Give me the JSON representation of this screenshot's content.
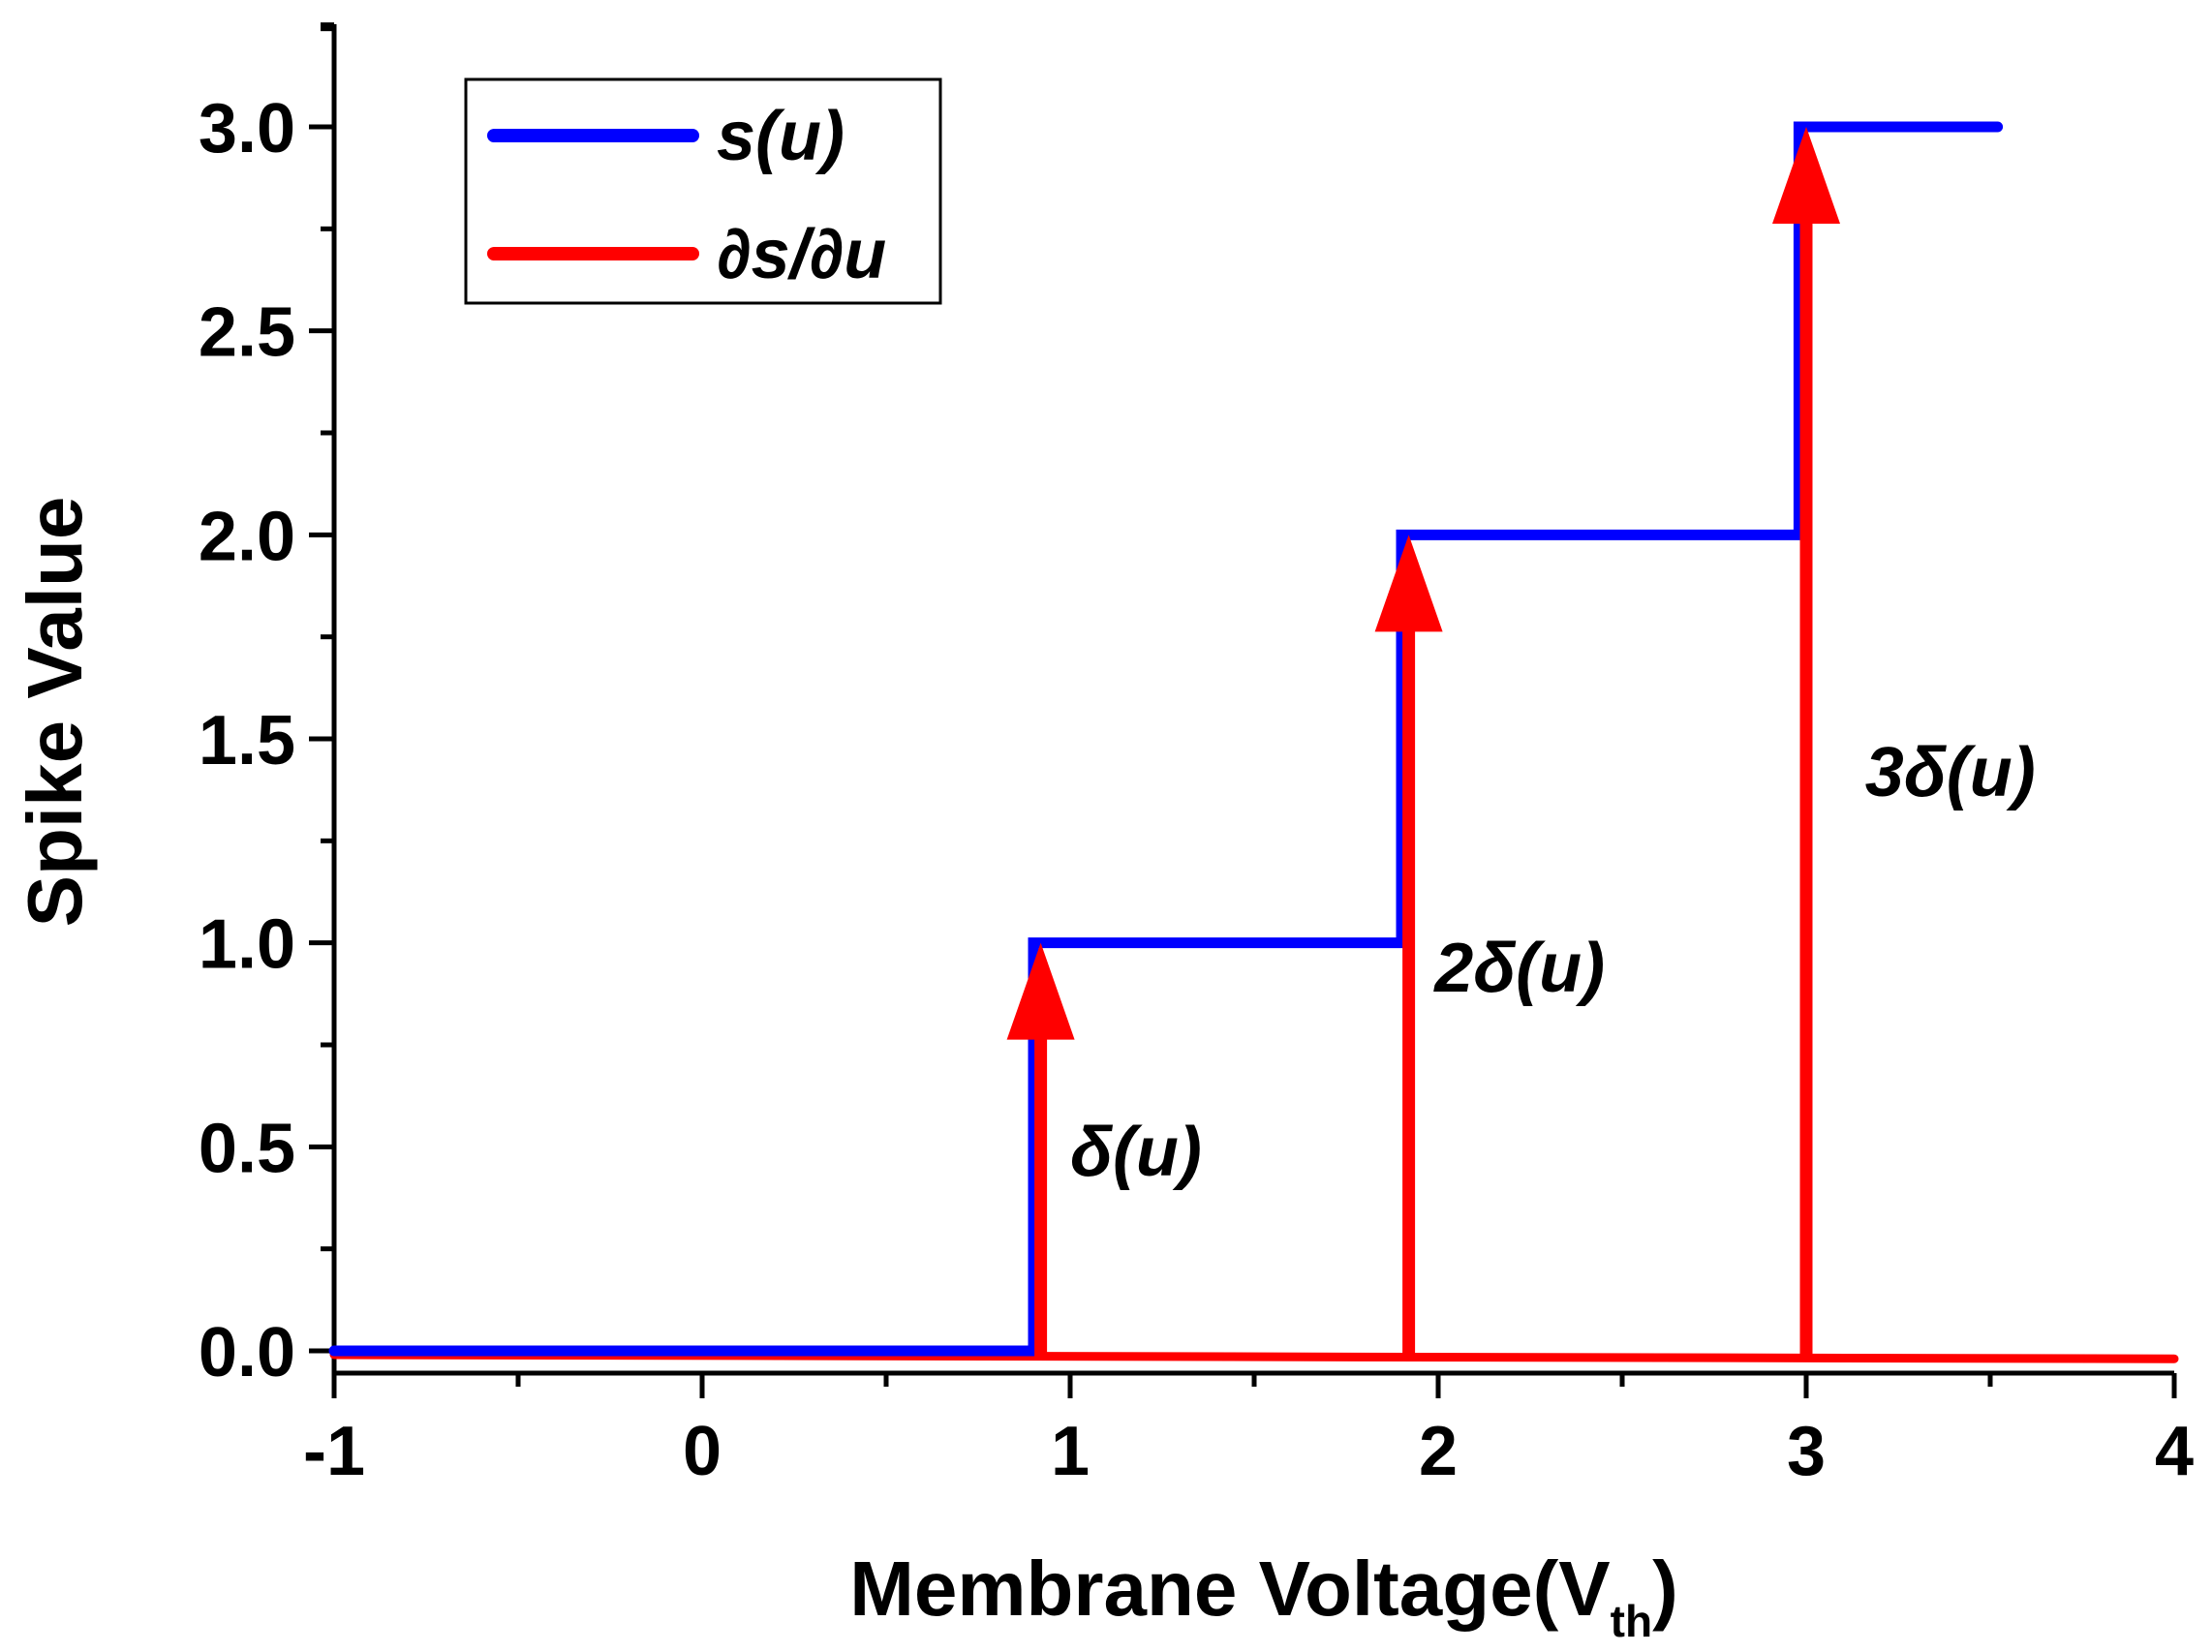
{
  "chart_data": {
    "type": "line",
    "title": "",
    "xlabel": "Membrane Voltage(V",
    "xlabel_sub": "th",
    "xlabel_close": ")",
    "ylabel": "Spike Value",
    "xlim": [
      -1,
      4
    ],
    "ylim": [
      -0.05,
      3.25
    ],
    "x_ticks": [
      -1,
      0,
      1,
      2,
      3,
      4
    ],
    "x_tick_labels": [
      "-1",
      "0",
      "1",
      "2",
      "3",
      "4"
    ],
    "y_ticks": [
      0.0,
      0.5,
      1.0,
      1.5,
      2.0,
      2.5,
      3.0
    ],
    "y_tick_labels": [
      "0.0",
      "0.5",
      "1.0",
      "1.5",
      "2.0",
      "2.5",
      "3.0"
    ],
    "grid": false,
    "legend_position": "top-left",
    "series": [
      {
        "name": "s(u)",
        "color": "#0000ff",
        "style": "step",
        "x": [
          -1,
          0.9,
          0.9,
          1.9,
          1.9,
          2.98,
          2.98,
          3.52
        ],
        "y": [
          0,
          0,
          1,
          1,
          2,
          2,
          3,
          3
        ]
      },
      {
        "name": "∂s/∂u",
        "color": "#ff0000",
        "style": "line",
        "x": [
          -1,
          4
        ],
        "y": [
          0,
          -0.01
        ]
      }
    ],
    "impulses": [
      {
        "x": 0.92,
        "height": 1,
        "label": "δ(u)",
        "label_x": 1.0,
        "label_y": 0.43
      },
      {
        "x": 1.92,
        "height": 2,
        "label": "2δ(u)",
        "label_x": 1.99,
        "label_y": 0.88
      },
      {
        "x": 3.0,
        "height": 3,
        "label": "3δ(u)",
        "label_x": 3.16,
        "label_y": 1.36
      }
    ]
  }
}
